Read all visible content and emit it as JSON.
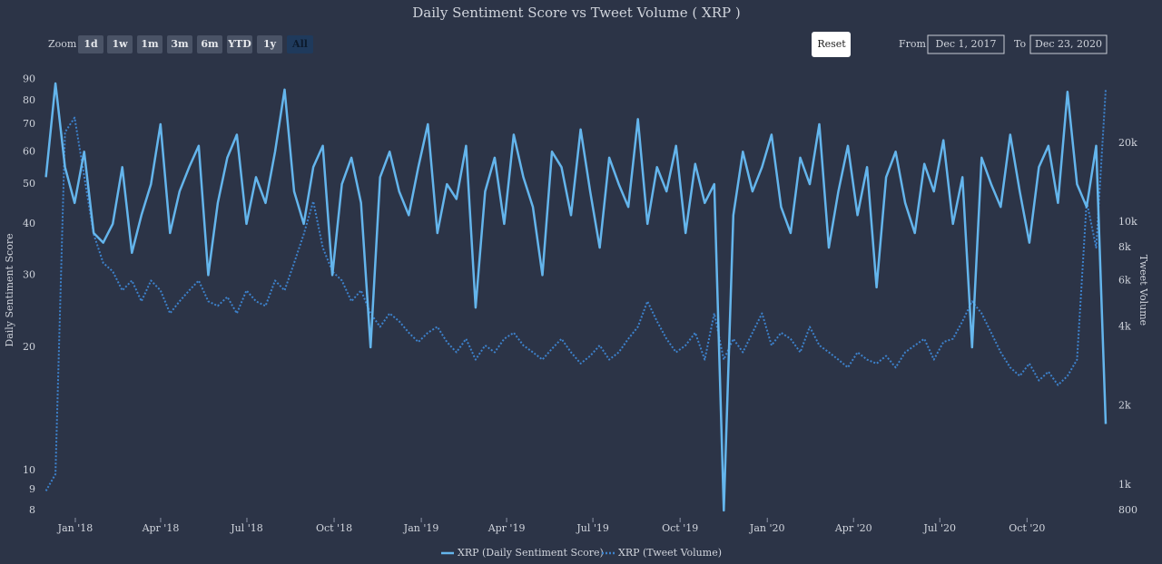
{
  "controls": {
    "zoom_label": "Zoom",
    "buttons": [
      "1d",
      "1w",
      "1m",
      "3m",
      "6m",
      "YTD",
      "1y",
      "All"
    ],
    "selected": "All",
    "reset": "Reset",
    "from_label": "From",
    "from": "Dec 1, 2017",
    "to_label": "To",
    "to": "Dec 23, 2020"
  },
  "chart_data": {
    "type": "line",
    "title": "Daily Sentiment Score vs Tweet Volume ( XRP )",
    "ylabel": "Daily Sentiment Score",
    "y2label": "Tweet Volume",
    "log_scale": true,
    "xlim": [
      "2017-12-01",
      "2020-12-23"
    ],
    "xticks": [
      {
        "value": "2018-01",
        "label": "Jan '18"
      },
      {
        "value": "2018-04",
        "label": "Apr '18"
      },
      {
        "value": "2018-07",
        "label": "Jul '18"
      },
      {
        "value": "2018-10",
        "label": "Oct '18"
      },
      {
        "value": "2019-01",
        "label": "Jan '19"
      },
      {
        "value": "2019-04",
        "label": "Apr '19"
      },
      {
        "value": "2019-07",
        "label": "Jul '19"
      },
      {
        "value": "2019-10",
        "label": "Oct '19"
      },
      {
        "value": "2020-01",
        "label": "Jan '20"
      },
      {
        "value": "2020-04",
        "label": "Apr '20"
      },
      {
        "value": "2020-07",
        "label": "Jul '20"
      },
      {
        "value": "2020-10",
        "label": "Oct '20"
      }
    ],
    "ylim": [
      8,
      95
    ],
    "yticks": [
      8,
      9,
      10,
      20,
      30,
      40,
      50,
      60,
      70,
      80,
      90
    ],
    "y2lim": [
      800,
      38000
    ],
    "y2ticks": [
      800,
      {
        "value": 1000,
        "label": "1k"
      },
      {
        "value": 2000,
        "label": "2k"
      },
      {
        "value": 4000,
        "label": "4k"
      },
      {
        "value": 6000,
        "label": "6k"
      },
      {
        "value": 8000,
        "label": "8k"
      },
      {
        "value": 10000,
        "label": "10k"
      },
      {
        "value": 20000,
        "label": "20k"
      }
    ],
    "series": [
      {
        "name": "XRP (Daily Sentiment Score)",
        "color": "#64b5ec",
        "dash": "solid",
        "values": [
          52,
          88,
          55,
          45,
          60,
          38,
          36,
          40,
          55,
          34,
          42,
          50,
          70,
          38,
          48,
          55,
          62,
          30,
          45,
          58,
          66,
          40,
          52,
          45,
          60,
          85,
          48,
          40,
          55,
          62,
          30,
          50,
          58,
          45,
          20,
          52,
          60,
          48,
          42,
          55,
          70,
          38,
          50,
          46,
          62,
          25,
          48,
          58,
          40,
          66,
          52,
          44,
          30,
          60,
          55,
          42,
          68,
          48,
          35,
          58,
          50,
          44,
          72,
          40,
          55,
          48,
          62,
          38,
          56,
          45,
          50,
          8,
          42,
          60,
          48,
          55,
          66,
          44,
          38,
          58,
          50,
          70,
          35,
          48,
          62,
          42,
          55,
          28,
          52,
          60,
          45,
          38,
          56,
          48,
          64,
          40,
          52,
          20,
          58,
          50,
          44,
          66,
          48,
          36,
          55,
          62,
          45,
          84,
          50,
          44,
          62,
          13
        ]
      },
      {
        "name": "XRP (Tweet Volume)",
        "color": "#3d82cc",
        "dash": "dot",
        "axis": "y2",
        "values": [
          950,
          1100,
          22000,
          25000,
          15000,
          9000,
          7000,
          6500,
          5500,
          6000,
          5000,
          6000,
          5500,
          4500,
          5000,
          5500,
          6000,
          5000,
          4800,
          5200,
          4500,
          5500,
          5000,
          4800,
          6000,
          5500,
          7000,
          9000,
          12000,
          8000,
          6500,
          6000,
          5000,
          5500,
          4500,
          4000,
          4500,
          4200,
          3800,
          3500,
          3800,
          4000,
          3500,
          3200,
          3600,
          3000,
          3400,
          3200,
          3600,
          3800,
          3400,
          3200,
          3000,
          3300,
          3600,
          3200,
          2900,
          3100,
          3400,
          3000,
          3200,
          3600,
          4000,
          5000,
          4200,
          3600,
          3200,
          3400,
          3800,
          3000,
          4500,
          3000,
          3600,
          3200,
          3800,
          4500,
          3400,
          3800,
          3600,
          3200,
          4000,
          3400,
          3200,
          3000,
          2800,
          3200,
          3000,
          2900,
          3100,
          2800,
          3200,
          3400,
          3600,
          3000,
          3500,
          3600,
          4200,
          5000,
          4500,
          3800,
          3200,
          2800,
          2600,
          2900,
          2500,
          2700,
          2400,
          2600,
          3000,
          12000,
          8000,
          32000
        ]
      }
    ]
  }
}
